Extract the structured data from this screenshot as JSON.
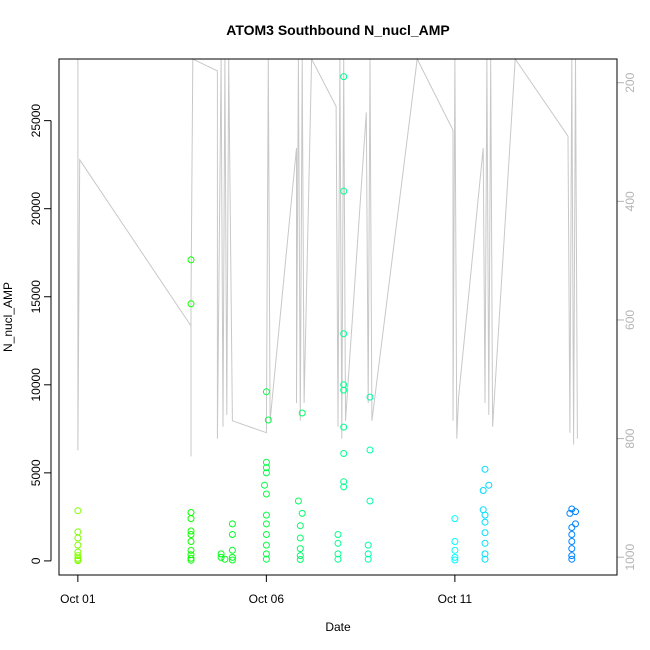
{
  "chart_data": {
    "type": "scatter",
    "title": "ATOM3 Southbound N_nucl_AMP",
    "xlabel": "Date",
    "ylabel": "N_nucl_AMP",
    "x_ticks": [
      "Oct 01",
      "Oct 06",
      "Oct 11"
    ],
    "x_tick_days": [
      1,
      6,
      11
    ],
    "xlim_days": [
      0.5,
      15.3
    ],
    "y_ticks": [
      0,
      5000,
      10000,
      15000,
      20000,
      25000
    ],
    "ylim": [
      -800,
      28500
    ],
    "y2_ticks": [
      200,
      400,
      600,
      800,
      1000
    ],
    "y2lim_top_to_bottom": [
      160,
      1030
    ],
    "series": [
      {
        "kind": "scatter",
        "colors": [
          "#88ff00",
          "#00ff66",
          "#00ffff",
          "#0088ff"
        ],
        "points": [
          [
            1.0,
            2850
          ],
          [
            1.0,
            1650
          ],
          [
            1.0,
            1300
          ],
          [
            1.0,
            900
          ],
          [
            1.0,
            500
          ],
          [
            1.0,
            300
          ],
          [
            1.0,
            150
          ],
          [
            1.0,
            60
          ],
          [
            1.0,
            20
          ],
          [
            4.0,
            17100
          ],
          [
            4.0,
            14600
          ],
          [
            4.0,
            2750
          ],
          [
            4.0,
            2400
          ],
          [
            4.0,
            1700
          ],
          [
            4.0,
            1500
          ],
          [
            4.0,
            1100
          ],
          [
            4.0,
            600
          ],
          [
            4.0,
            350
          ],
          [
            4.0,
            150
          ],
          [
            4.0,
            40
          ],
          [
            4.8,
            400
          ],
          [
            4.8,
            200
          ],
          [
            4.9,
            100
          ],
          [
            5.1,
            2100
          ],
          [
            5.1,
            1500
          ],
          [
            5.1,
            600
          ],
          [
            5.1,
            200
          ],
          [
            5.1,
            50
          ],
          [
            6.0,
            9600
          ],
          [
            6.05,
            8000
          ],
          [
            6.0,
            5600
          ],
          [
            6.0,
            5300
          ],
          [
            6.0,
            5000
          ],
          [
            5.95,
            4300
          ],
          [
            6.0,
            3800
          ],
          [
            6.0,
            2600
          ],
          [
            6.0,
            2100
          ],
          [
            6.0,
            1500
          ],
          [
            6.0,
            900
          ],
          [
            6.0,
            400
          ],
          [
            6.0,
            100
          ],
          [
            6.85,
            3400
          ],
          [
            6.95,
            8400
          ],
          [
            6.95,
            2700
          ],
          [
            6.9,
            2000
          ],
          [
            6.9,
            1300
          ],
          [
            6.9,
            700
          ],
          [
            6.9,
            300
          ],
          [
            6.9,
            80
          ],
          [
            8.05,
            27500
          ],
          [
            8.05,
            21000
          ],
          [
            8.05,
            12900
          ],
          [
            8.05,
            10000
          ],
          [
            8.05,
            9700
          ],
          [
            8.05,
            7600
          ],
          [
            8.05,
            6100
          ],
          [
            8.05,
            4500
          ],
          [
            8.05,
            4200
          ],
          [
            7.9,
            1500
          ],
          [
            7.9,
            1000
          ],
          [
            7.9,
            400
          ],
          [
            7.9,
            100
          ],
          [
            8.75,
            9300
          ],
          [
            8.75,
            6300
          ],
          [
            8.75,
            3400
          ],
          [
            8.7,
            900
          ],
          [
            8.7,
            400
          ],
          [
            8.7,
            100
          ],
          [
            11.0,
            2400
          ],
          [
            11.0,
            1100
          ],
          [
            11.0,
            600
          ],
          [
            11.0,
            200
          ],
          [
            11.0,
            50
          ],
          [
            11.8,
            5200
          ],
          [
            11.9,
            4300
          ],
          [
            11.75,
            4000
          ],
          [
            11.75,
            2900
          ],
          [
            11.8,
            2600
          ],
          [
            11.8,
            2200
          ],
          [
            11.8,
            1600
          ],
          [
            11.8,
            1000
          ],
          [
            11.8,
            400
          ],
          [
            11.8,
            100
          ],
          [
            14.1,
            2950
          ],
          [
            14.2,
            2800
          ],
          [
            14.05,
            2700
          ],
          [
            14.2,
            2100
          ],
          [
            14.1,
            1900
          ],
          [
            14.1,
            1500
          ],
          [
            14.1,
            1100
          ],
          [
            14.1,
            700
          ],
          [
            14.1,
            300
          ],
          [
            14.1,
            100
          ]
        ]
      },
      {
        "kind": "line",
        "axis": "right",
        "color": "#c8c8c8",
        "name": "",
        "points": [
          [
            1.0,
            160
          ],
          [
            1.0,
            820
          ],
          [
            1.05,
            330
          ],
          [
            4.0,
            610
          ],
          [
            4.0,
            830
          ],
          [
            4.0,
            570
          ],
          [
            4.05,
            160
          ],
          [
            4.7,
            180
          ],
          [
            4.7,
            800
          ],
          [
            4.8,
            160
          ],
          [
            4.85,
            780
          ],
          [
            4.9,
            160
          ],
          [
            4.95,
            760
          ],
          [
            5.0,
            160
          ],
          [
            5.1,
            770
          ],
          [
            6.0,
            790
          ],
          [
            6.05,
            160
          ],
          [
            6.1,
            770
          ],
          [
            6.8,
            310
          ],
          [
            6.8,
            740
          ],
          [
            6.85,
            160
          ],
          [
            6.9,
            770
          ],
          [
            6.95,
            160
          ],
          [
            7.0,
            740
          ],
          [
            7.2,
            160
          ],
          [
            7.85,
            240
          ],
          [
            7.9,
            780
          ],
          [
            7.95,
            160
          ],
          [
            8.0,
            800
          ],
          [
            8.05,
            160
          ],
          [
            8.1,
            770
          ],
          [
            8.65,
            250
          ],
          [
            8.7,
            740
          ],
          [
            8.75,
            160
          ],
          [
            8.8,
            770
          ],
          [
            10.0,
            160
          ],
          [
            10.95,
            280
          ],
          [
            10.95,
            770
          ],
          [
            11.0,
            160
          ],
          [
            11.05,
            800
          ],
          [
            11.1,
            730
          ],
          [
            11.75,
            310
          ],
          [
            11.8,
            740
          ],
          [
            11.85,
            160
          ],
          [
            11.9,
            760
          ],
          [
            11.95,
            160
          ],
          [
            12.0,
            780
          ],
          [
            12.6,
            160
          ],
          [
            14.0,
            290
          ],
          [
            14.05,
            790
          ],
          [
            14.1,
            160
          ],
          [
            14.15,
            810
          ],
          [
            14.2,
            160
          ],
          [
            14.25,
            800
          ]
        ]
      }
    ],
    "grid": false,
    "legend": "none"
  }
}
